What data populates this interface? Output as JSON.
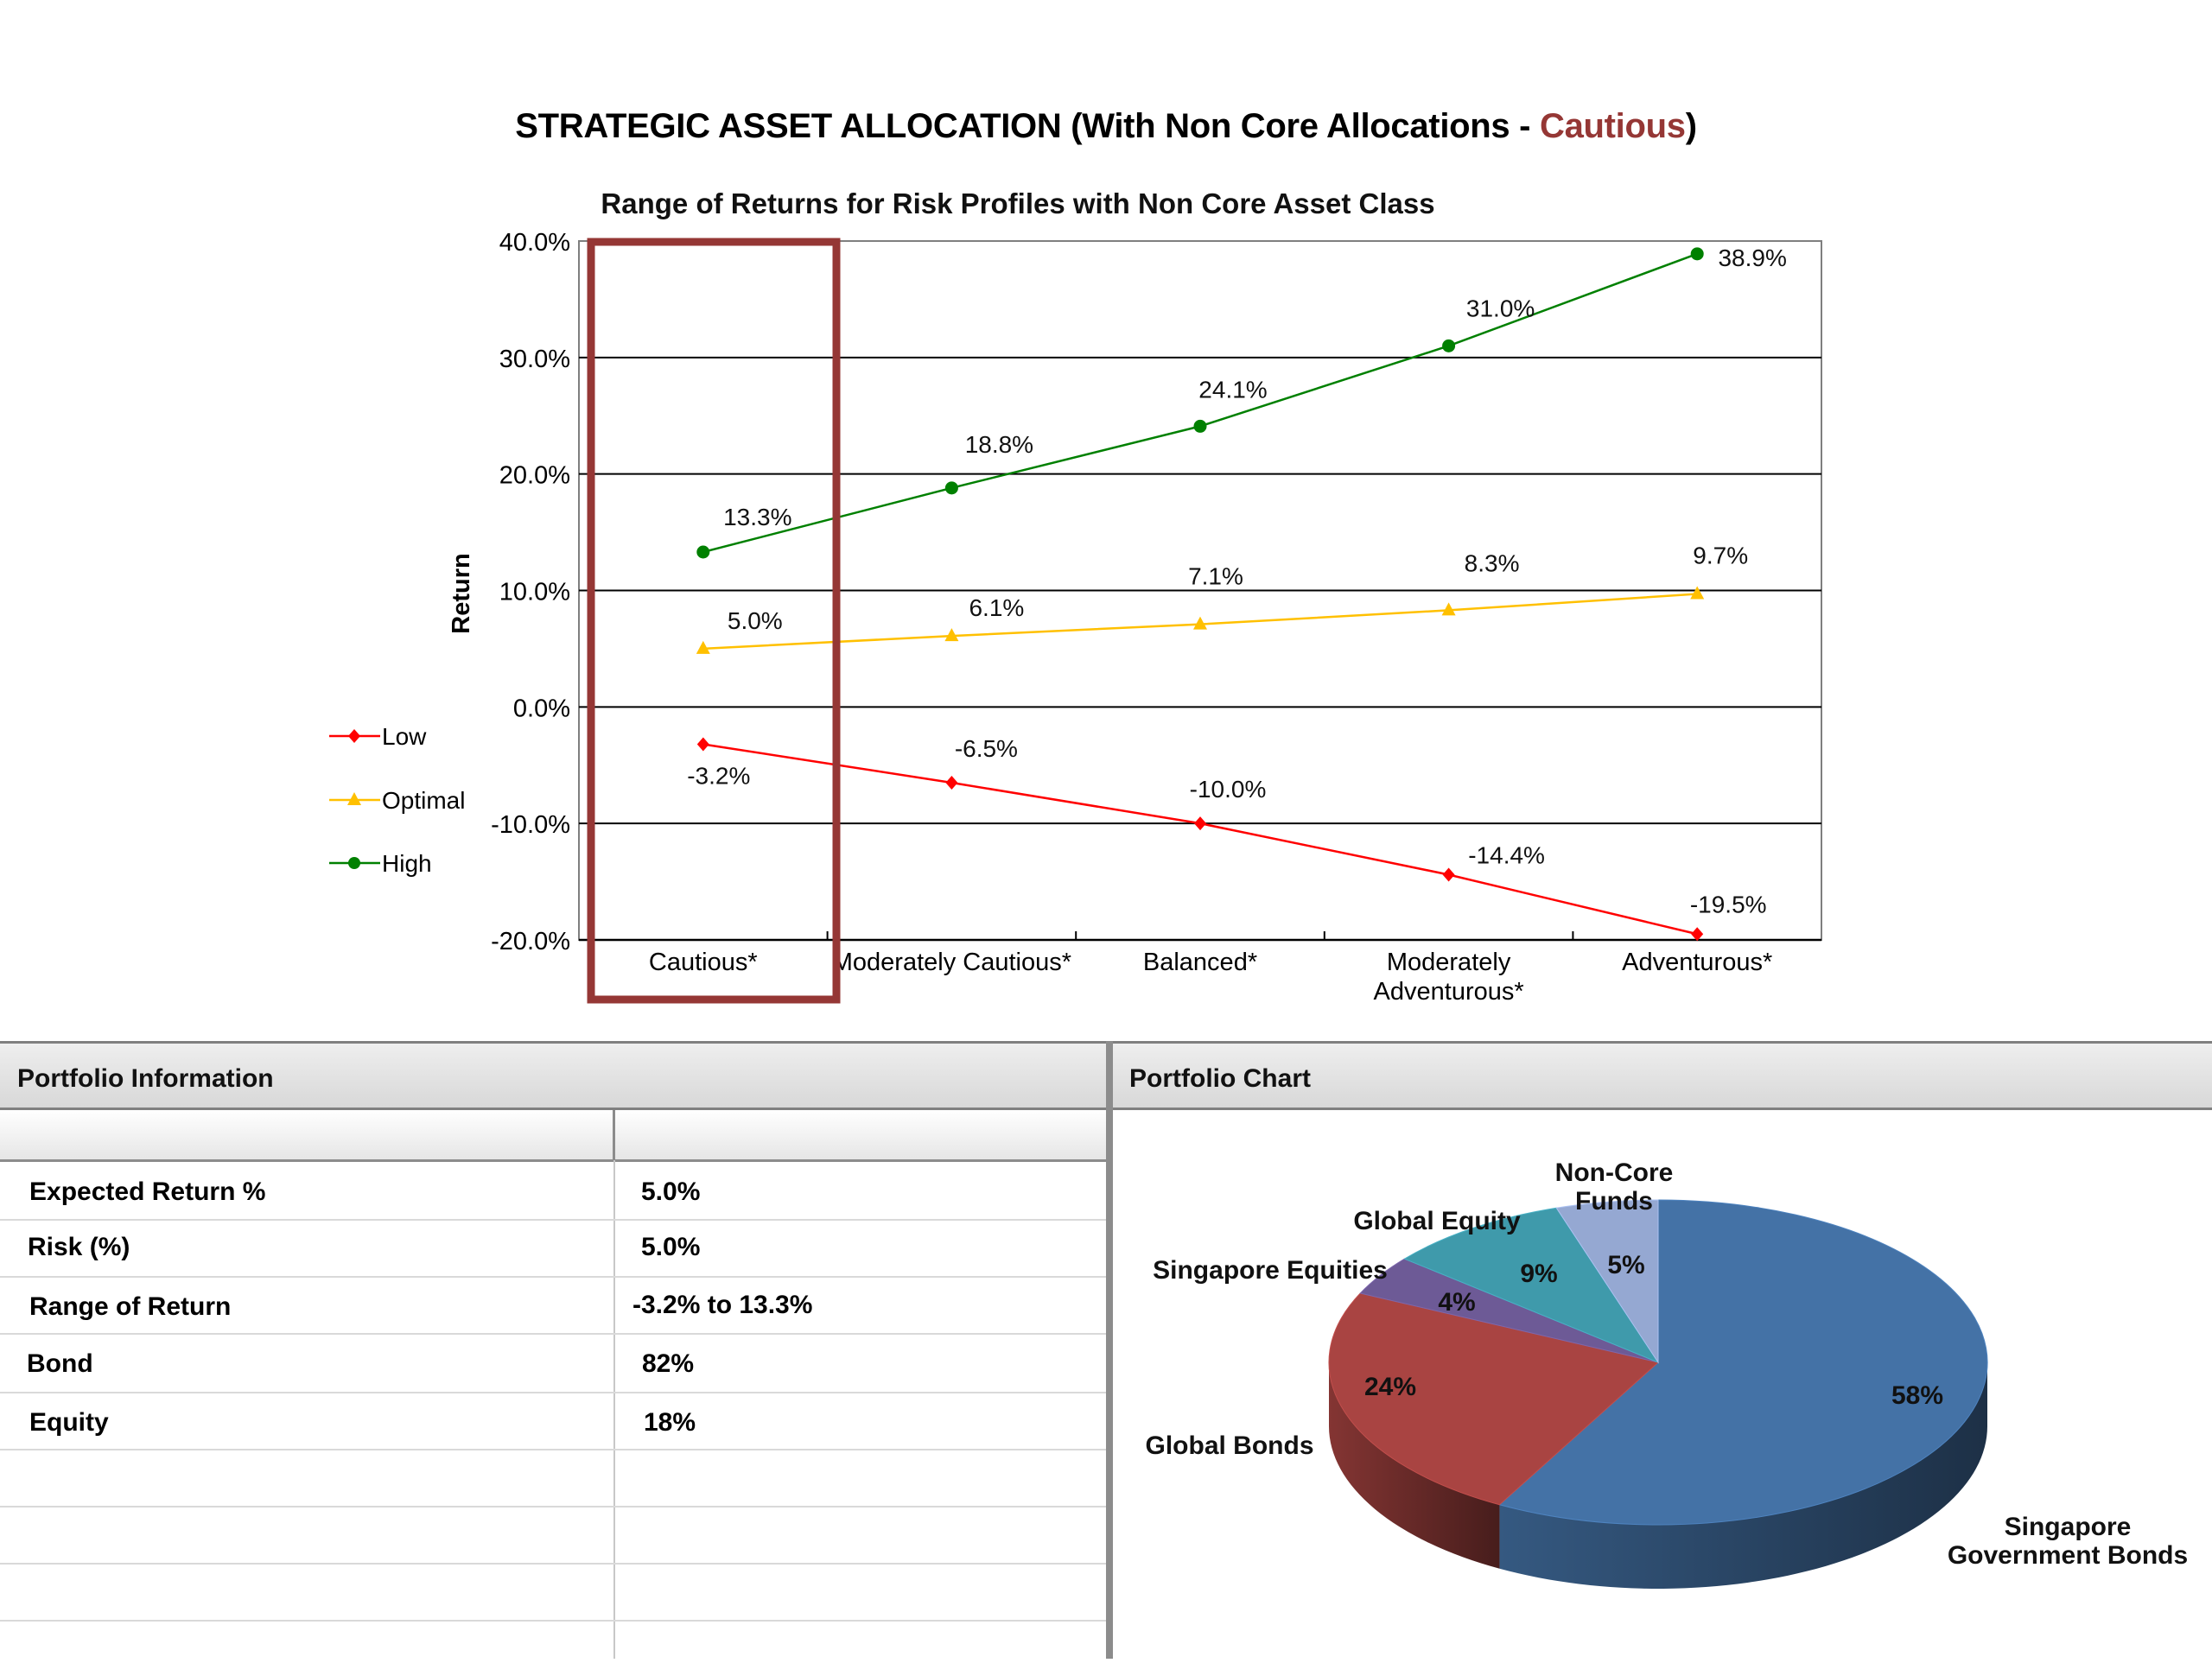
{
  "page": {
    "title_prefix": "STRATEGIC ASSET ALLOCATION (With Non Core Allocations - ",
    "title_highlight": "Cautious",
    "title_suffix": ")",
    "highlight_color": "#953735"
  },
  "chart_data": [
    {
      "type": "line",
      "title": "Range of Returns for Risk Profiles with Non Core Asset Class",
      "xlabel": "",
      "ylabel": "Return",
      "ylim": [
        -20,
        40
      ],
      "ytick_labels": [
        "-20.0%",
        "-10.0%",
        "0.0%",
        "10.0%",
        "20.0%",
        "30.0%",
        "40.0%"
      ],
      "ytick_values": [
        -20,
        -10,
        0,
        10,
        20,
        30,
        40
      ],
      "categories": [
        "Cautious*",
        "Moderately Cautious*",
        "Balanced*",
        "Moderately Adventurous*",
        "Adventurous*"
      ],
      "highlighted_category": "Cautious*",
      "legend_position": "left",
      "series": [
        {
          "name": "Low",
          "color": "#ff0000",
          "marker": "diamond",
          "values": [
            -3.2,
            -6.5,
            -10.0,
            -14.4,
            -19.5
          ],
          "labels": [
            "-3.2%",
            "-6.5%",
            "-10.0%",
            "-14.4%",
            "-19.5%"
          ]
        },
        {
          "name": "Optimal",
          "color": "#ffc000",
          "marker": "triangle",
          "values": [
            5.0,
            6.1,
            7.1,
            8.3,
            9.7
          ],
          "labels": [
            "5.0%",
            "6.1%",
            "7.1%",
            "8.3%",
            "9.7%"
          ]
        },
        {
          "name": "High",
          "color": "#008000",
          "marker": "circle",
          "values": [
            13.3,
            18.8,
            24.1,
            31.0,
            38.9
          ],
          "labels": [
            "13.3%",
            "18.8%",
            "24.1%",
            "31.0%",
            "38.9%"
          ]
        }
      ]
    },
    {
      "type": "pie",
      "title": "Portfolio Chart",
      "slices": [
        {
          "name": "Singapore Government Bonds",
          "value": 58,
          "label": "58%",
          "color": "#4472a6"
        },
        {
          "name": "Global Bonds",
          "value": 24,
          "label": "24%",
          "color": "#a94442"
        },
        {
          "name": "Singapore Equities",
          "value": 4,
          "label": "4%",
          "color": "#6d5a96"
        },
        {
          "name": "Global Equity",
          "value": 9,
          "label": "9%",
          "color": "#3f9aab"
        },
        {
          "name": "Non-Core Funds",
          "value": 5,
          "label": "5%",
          "color": "#95a8d2"
        }
      ]
    }
  ],
  "portfolio_info": {
    "title": "Portfolio Information",
    "rows": [
      {
        "label": "Expected Return %",
        "value": "5.0%"
      },
      {
        "label": "Risk (%)",
        "value": "5.0%"
      },
      {
        "label": "Range of Return",
        "value": "-3.2% to 13.3%"
      },
      {
        "label": "Bond",
        "value": "82%"
      },
      {
        "label": "Equity",
        "value": "18%"
      }
    ]
  },
  "portfolio_chart": {
    "title": "Portfolio Chart",
    "labels": {
      "non_core_line1": "Non-Core",
      "non_core_line2": "Funds",
      "global_equity": "Global Equity",
      "singapore_equities": "Singapore Equities",
      "global_bonds": "Global Bonds",
      "sgb_line1": "Singapore",
      "sgb_line2": "Government Bonds"
    }
  }
}
